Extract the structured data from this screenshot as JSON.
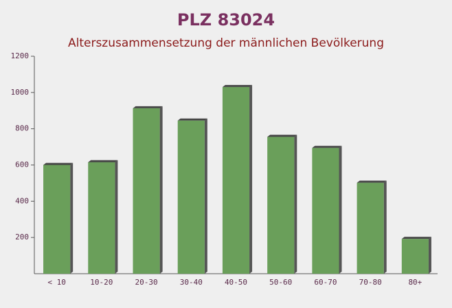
{
  "chart_data": {
    "type": "bar",
    "title": "PLZ 83024",
    "subtitle": "Alterszusammensetzung der männlichen Bevölkerung",
    "categories": [
      "< 10",
      "10-20",
      "20-30",
      "30-40",
      "40-50",
      "50-60",
      "60-70",
      "70-80",
      "80+"
    ],
    "values": [
      600,
      615,
      913,
      845,
      1030,
      755,
      694,
      502,
      192
    ],
    "color": "#6a9f5a",
    "ylim": [
      0,
      1200
    ],
    "yticks": [
      200,
      400,
      600,
      800,
      1000,
      1200
    ],
    "grid": false
  }
}
